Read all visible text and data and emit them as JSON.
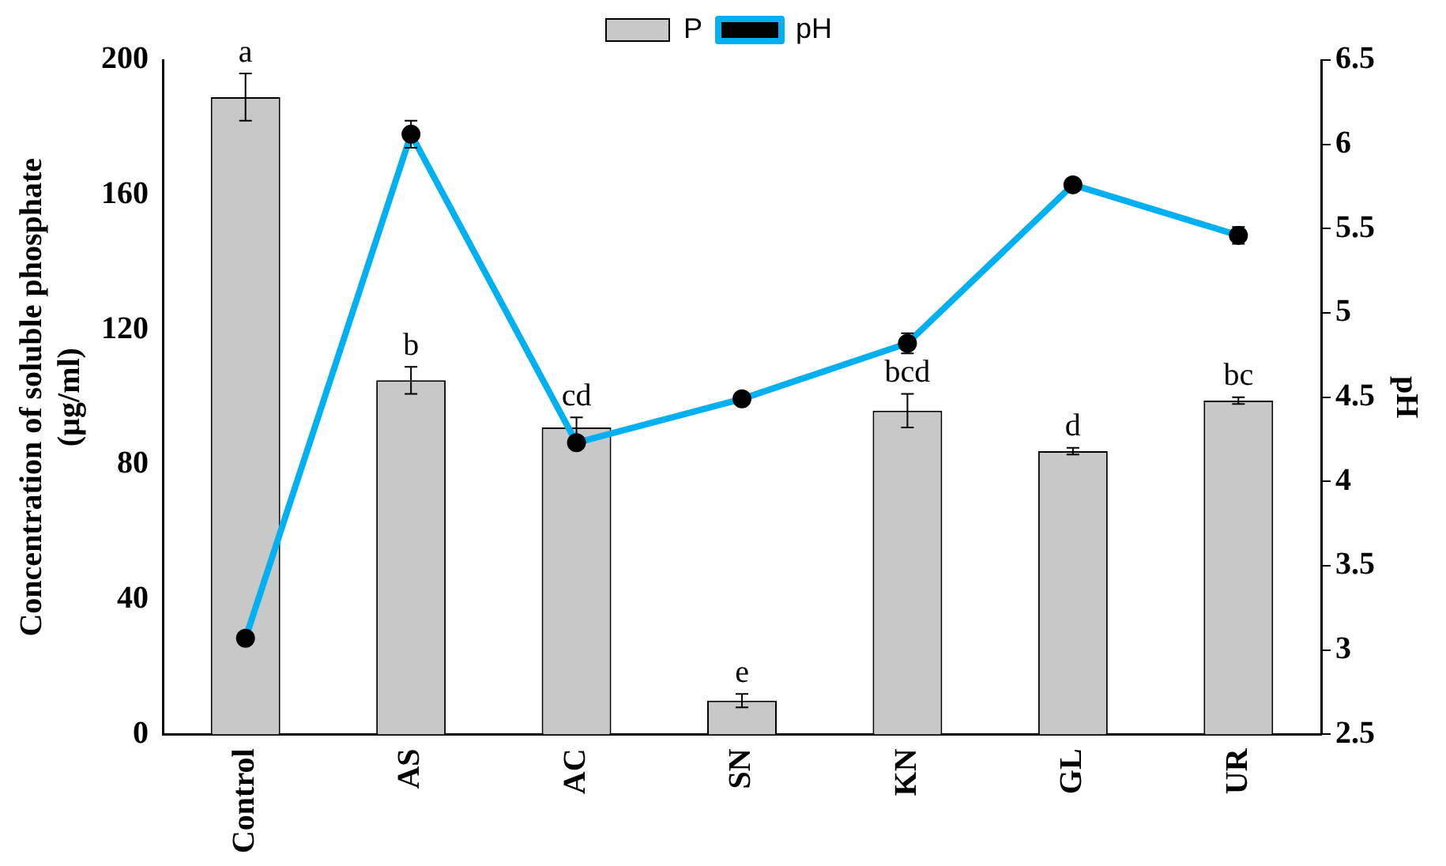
{
  "chart_data": {
    "type": "bar",
    "categories": [
      "Control",
      "AS",
      "AC",
      "SN",
      "KN",
      "GL",
      "UR"
    ],
    "series": [
      {
        "name": "P",
        "color": "#c8c8c8",
        "values": [
          189,
          105,
          91,
          10,
          96,
          84,
          99
        ],
        "errors": [
          7,
          4,
          3,
          2,
          5,
          1,
          1
        ]
      },
      {
        "name": "pH",
        "type": "line",
        "axis": "y2",
        "color": "#00b0f0",
        "marker": "circle",
        "values": [
          3.07,
          6.06,
          4.23,
          4.49,
          4.82,
          5.76,
          5.46
        ],
        "errors": [
          null,
          0.08,
          null,
          null,
          0.06,
          null,
          0.05
        ]
      }
    ],
    "ylabel": "Concentration of soluble phosphate\n(µg/ml)",
    "y2label": "pH",
    "ylim": [
      0,
      200
    ],
    "yticks": [
      0,
      40,
      80,
      120,
      160,
      200
    ],
    "y2lim": [
      2.5,
      6.5
    ],
    "y2ticks": [
      2.5,
      3,
      3.5,
      4,
      4.5,
      5,
      5.5,
      6,
      6.5
    ],
    "legend": "top",
    "grid": false,
    "annotations": [
      {
        "text": "a",
        "x": "Control",
        "y": 196
      },
      {
        "text": "b",
        "x": "AS",
        "y": 109
      },
      {
        "text": "cd",
        "x": "AC",
        "y": 94
      },
      {
        "text": "e",
        "x": "SN",
        "y": 12
      },
      {
        "text": "bcd",
        "x": "KN",
        "y": 101
      },
      {
        "text": "d",
        "x": "GL",
        "y": 85
      },
      {
        "text": "bc",
        "x": "UR",
        "y": 100
      }
    ]
  }
}
